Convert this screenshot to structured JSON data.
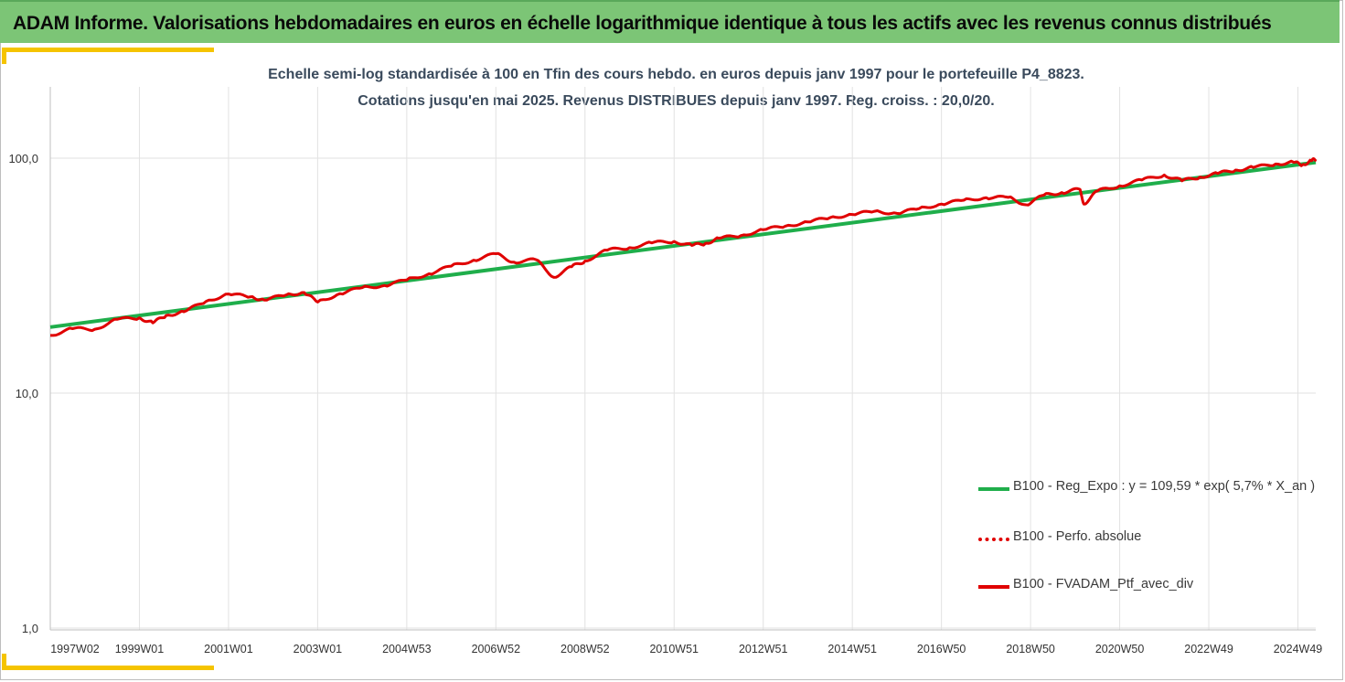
{
  "banner": {
    "title": "ADAM Informe. Valorisations hebdomadaires en euros en échelle logarithmique identique à tous les actifs avec les revenus connus distribués"
  },
  "chart_data": {
    "type": "line",
    "title": "Echelle semi-log standardisée à 100 en Tfin des cours hebdo. en euros depuis janv 1997 pour le portefeuille P4_8823.",
    "subtitle": "Cotations jusqu'en mai 2025. Revenus DISTRIBUES depuis janv 1997. Reg. croiss. : 20,0/20.",
    "xlabel": "",
    "ylabel": "",
    "y_scale": "log",
    "ylim": [
      1,
      200
    ],
    "y_ticks": [
      "1,0",
      "10,0",
      "100,0"
    ],
    "y_tick_values": [
      1,
      10,
      100
    ],
    "x_ticks": [
      "1997W02",
      "1999W01",
      "2001W01",
      "2003W01",
      "2004W53",
      "2006W52",
      "2008W52",
      "2010W51",
      "2012W51",
      "2014W51",
      "2016W50",
      "2018W50",
      "2020W50",
      "2022W49",
      "2024W49"
    ],
    "x_tick_years": [
      1997.0,
      1999.0,
      2001.0,
      2003.0,
      2005.0,
      2007.0,
      2009.0,
      2011.0,
      2013.0,
      2015.0,
      2017.0,
      2019.0,
      2021.0,
      2023.0,
      2025.0
    ],
    "xlim": [
      1997.0,
      2025.4
    ],
    "grid": true,
    "legend_position": "bottom-right",
    "series": [
      {
        "name": "B100 - Reg_Expo : y = 109,59 * exp( 5,7% *  X_an )",
        "color": "#1fae4b",
        "style": "solid",
        "x": [
          1997.0,
          2025.4
        ],
        "y": [
          19.1,
          96.0
        ]
      },
      {
        "name": "B100 - Perfo. absolue",
        "color": "#e00000",
        "style": "dotted",
        "x": [],
        "y": []
      },
      {
        "name": "B100 - FVADAM_Ptf_avec_div",
        "color": "#e00000",
        "style": "solid",
        "x": [
          1997.0,
          1997.5,
          1998.0,
          1998.5,
          1999.0,
          1999.3,
          1999.6,
          2000.0,
          2000.5,
          2001.0,
          2001.5,
          2001.8,
          2002.3,
          2002.7,
          2003.0,
          2003.5,
          2004.0,
          2004.5,
          2005.0,
          2005.5,
          2006.0,
          2006.5,
          2007.0,
          2007.4,
          2007.9,
          2008.3,
          2008.7,
          2009.0,
          2009.5,
          2010.0,
          2010.5,
          2011.0,
          2011.4,
          2011.7,
          2012.0,
          2012.5,
          2013.0,
          2013.5,
          2014.0,
          2014.5,
          2015.0,
          2015.5,
          2016.0,
          2016.5,
          2017.0,
          2017.5,
          2018.0,
          2018.5,
          2018.9,
          2019.3,
          2019.7,
          2020.1,
          2020.2,
          2020.5,
          2021.0,
          2021.5,
          2022.0,
          2022.4,
          2022.8,
          2023.2,
          2023.6,
          2024.0,
          2024.5,
          2024.9,
          2025.1,
          2025.3,
          2025.4
        ],
        "y": [
          17.6,
          18.8,
          18.7,
          20.6,
          20.9,
          19.9,
          21.4,
          22.2,
          24.6,
          26.4,
          25.7,
          24.9,
          26.2,
          26.8,
          24.4,
          26.5,
          28.1,
          28.7,
          30.3,
          32.2,
          34.7,
          36.8,
          39.2,
          36.1,
          37.0,
          31.1,
          34.5,
          36.5,
          40.6,
          41.6,
          43.6,
          44.2,
          42.5,
          43.3,
          45.6,
          46.8,
          49.6,
          51.4,
          53.5,
          55.8,
          57.6,
          59.4,
          58.2,
          61.0,
          63.8,
          66.2,
          67.9,
          68.1,
          63.3,
          69.6,
          71.4,
          73.8,
          63.7,
          72.5,
          76.3,
          80.7,
          84.8,
          80.1,
          83.1,
          86.0,
          89.0,
          91.3,
          94.4,
          96.1,
          93.6,
          97.5,
          99.0
        ]
      }
    ]
  }
}
